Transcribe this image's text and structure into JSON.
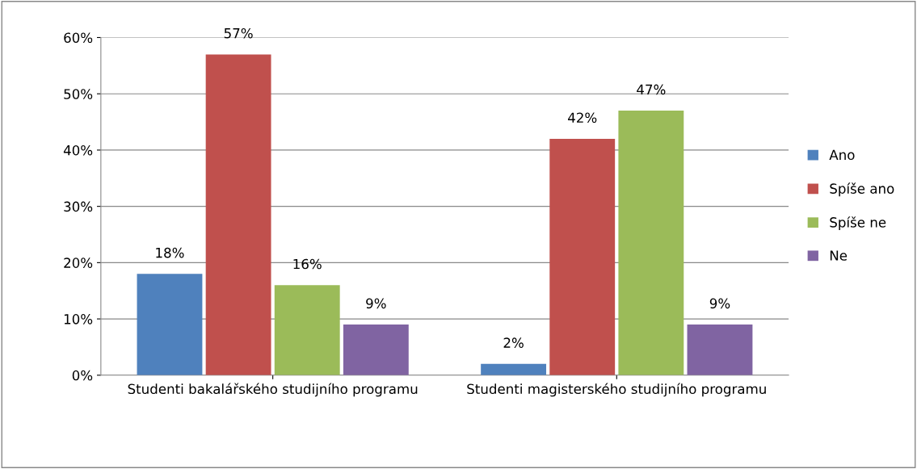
{
  "chart_data": {
    "type": "bar",
    "categories": [
      "Studenti bakalářského studijního programu",
      "Studenti magisterského studijního programu"
    ],
    "series": [
      {
        "name": "Ano",
        "color": "#4f81bd",
        "values": [
          18,
          2
        ],
        "value_labels": [
          "18%",
          "2%"
        ]
      },
      {
        "name": "Spíše ano",
        "color": "#c0504d",
        "values": [
          57,
          42
        ],
        "value_labels": [
          "57%",
          "42%"
        ]
      },
      {
        "name": "Spíše ne",
        "color": "#9bbb59",
        "values": [
          16,
          47
        ],
        "value_labels": [
          "16%",
          "47%"
        ]
      },
      {
        "name": "Ne",
        "color": "#8064a2",
        "values": [
          9,
          9
        ],
        "value_labels": [
          "9%",
          "9%"
        ]
      }
    ],
    "ylim": [
      0,
      60
    ],
    "yticks": [
      {
        "value": 0,
        "label": "0%"
      },
      {
        "value": 10,
        "label": "10%"
      },
      {
        "value": 20,
        "label": "20%"
      },
      {
        "value": 30,
        "label": "30%"
      },
      {
        "value": 40,
        "label": "40%"
      },
      {
        "value": 50,
        "label": "50%"
      },
      {
        "value": 60,
        "label": "60%"
      }
    ],
    "grid": "y",
    "legend": "right"
  }
}
